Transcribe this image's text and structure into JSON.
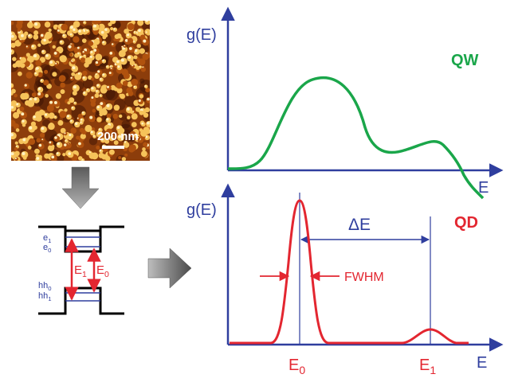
{
  "afm_image": {
    "scale_bar_label": "200 nm",
    "colors": {
      "dark": "#3a1204",
      "mid": "#b0520e",
      "bright": "#f6c35a",
      "highlight": "#fff1c2"
    }
  },
  "band_diagram": {
    "electron_levels": [
      {
        "base": "e",
        "sub": "1"
      },
      {
        "base": "e",
        "sub": "0"
      }
    ],
    "hole_levels": [
      {
        "base": "hh",
        "sub": "0"
      },
      {
        "base": "hh",
        "sub": "1"
      }
    ],
    "transitions": [
      {
        "base": "E",
        "sub": "1"
      },
      {
        "base": "E",
        "sub": "0"
      }
    ]
  },
  "charts": {
    "qw": {
      "ylabel": "g(E)",
      "xlabel": "E",
      "tag": "QW",
      "color": "#1aa64a"
    },
    "qd": {
      "ylabel": "g(E)",
      "xlabel": "E",
      "tag": "QD",
      "color": "#e32630",
      "delta_label": "ΔE",
      "fwhm_label": "FWHM",
      "peak_labels": [
        {
          "base": "E",
          "sub": "0"
        },
        {
          "base": "E",
          "sub": "1"
        }
      ]
    }
  },
  "colors": {
    "axis": "#2f3e9e",
    "arrow_fill": "#8a8a8a"
  }
}
